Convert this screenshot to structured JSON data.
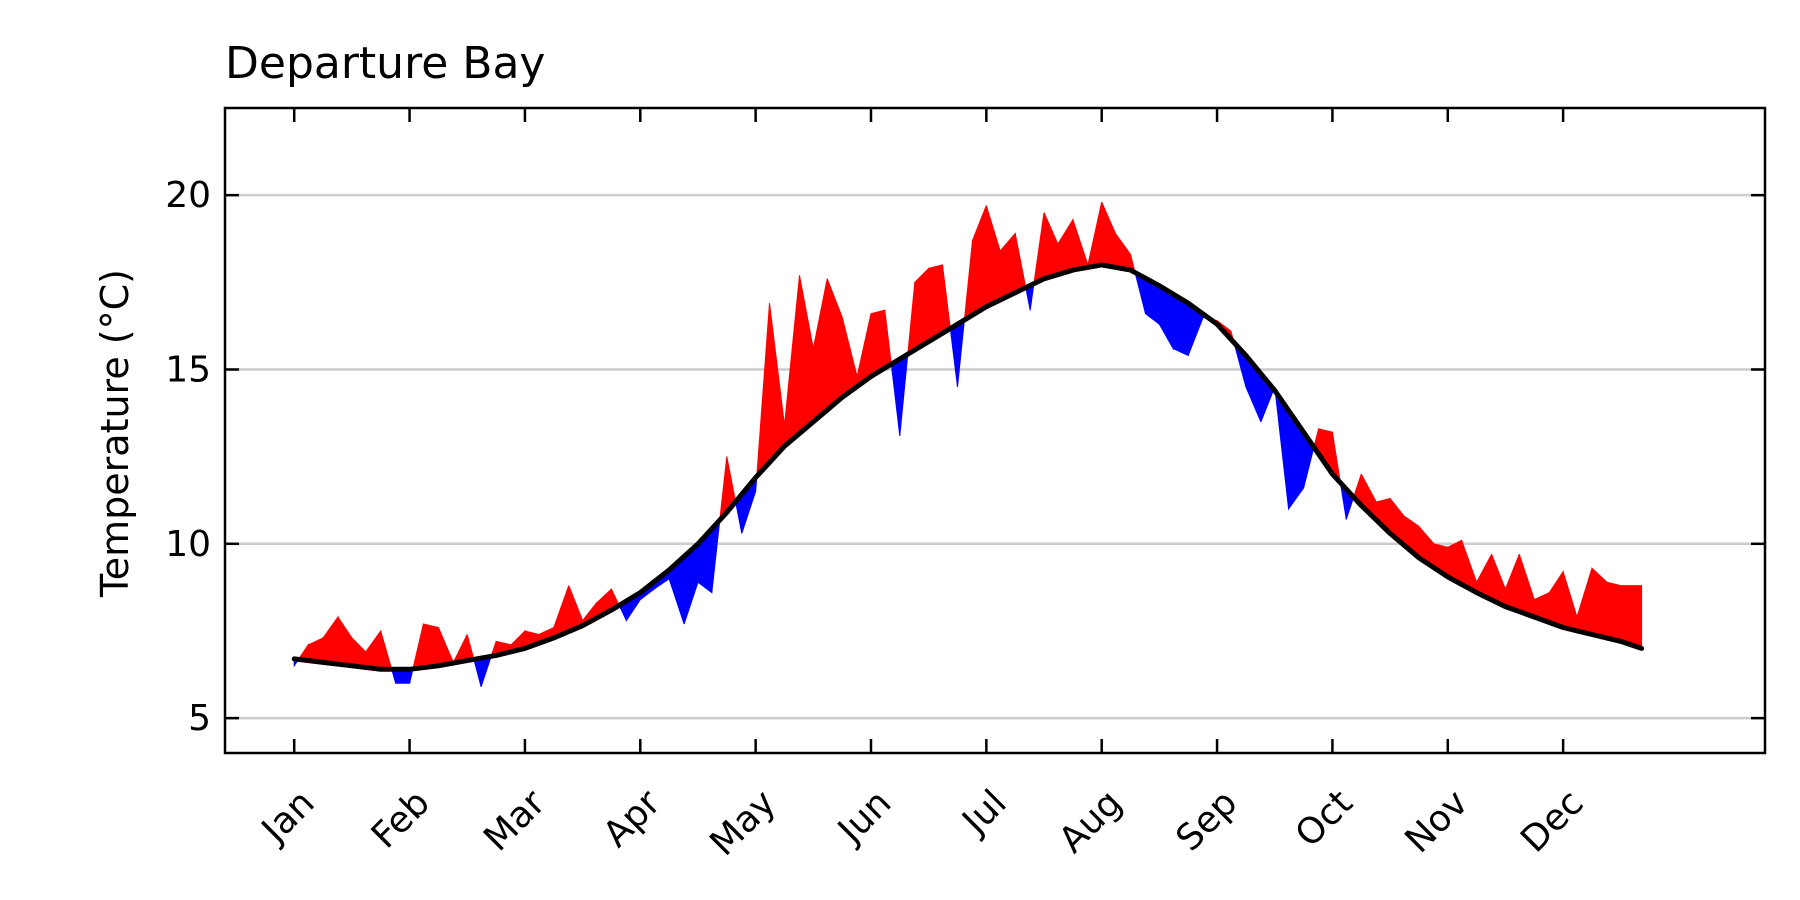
{
  "chart_data": {
    "type": "area",
    "title": "Departure Bay",
    "xlabel": "",
    "ylabel": "Temperature (°C)",
    "ylim": [
      4,
      22.5
    ],
    "yticks": [
      5,
      10,
      15,
      20
    ],
    "xlim": [
      -0.6,
      12.75
    ],
    "grid": "horizontal",
    "legend": "none",
    "x_tick_labels": [
      "Jan",
      "Feb",
      "Mar",
      "Apr",
      "May",
      "Jun",
      "Jul",
      "Aug",
      "Sep",
      "Oct",
      "Nov",
      "Dec"
    ],
    "x_tick_positions": [
      0,
      1,
      2,
      3,
      4,
      5,
      6,
      7,
      8,
      9,
      10,
      11
    ],
    "colors": {
      "above": "#ff0000",
      "below": "#0000ff",
      "climatology": "#000000",
      "grid": "#cccccc"
    },
    "series": [
      {
        "role": "climatology",
        "x": [
          0.0,
          0.25,
          0.5,
          0.75,
          1.0,
          1.25,
          1.5,
          1.75,
          2.0,
          2.25,
          2.5,
          2.75,
          3.0,
          3.25,
          3.5,
          3.75,
          4.0,
          4.25,
          4.5,
          4.75,
          5.0,
          5.25,
          5.5,
          5.75,
          6.0,
          6.25,
          6.5,
          6.75,
          7.0,
          7.25,
          7.5,
          7.75,
          8.0,
          8.25,
          8.5,
          8.75,
          9.0,
          9.25,
          9.5,
          9.75,
          10.0,
          10.25,
          10.5,
          10.75,
          11.0,
          11.25,
          11.5,
          11.68
        ],
        "values": [
          6.7,
          6.6,
          6.5,
          6.4,
          6.4,
          6.5,
          6.65,
          6.8,
          7.0,
          7.3,
          7.65,
          8.1,
          8.6,
          9.25,
          10.0,
          10.9,
          11.9,
          12.8,
          13.5,
          14.2,
          14.8,
          15.3,
          15.8,
          16.3,
          16.8,
          17.2,
          17.6,
          17.85,
          18.0,
          17.85,
          17.4,
          16.9,
          16.3,
          15.4,
          14.4,
          13.2,
          12.0,
          11.1,
          10.3,
          9.6,
          9.05,
          8.6,
          8.2,
          7.9,
          7.6,
          7.4,
          7.2,
          7.0
        ]
      },
      {
        "role": "observed",
        "x": [
          0.0,
          0.12,
          0.25,
          0.38,
          0.5,
          0.62,
          0.75,
          0.88,
          1.0,
          1.12,
          1.25,
          1.38,
          1.5,
          1.62,
          1.75,
          1.88,
          2.0,
          2.12,
          2.25,
          2.38,
          2.5,
          2.62,
          2.75,
          2.88,
          3.0,
          3.12,
          3.25,
          3.38,
          3.5,
          3.62,
          3.75,
          3.88,
          4.0,
          4.12,
          4.25,
          4.38,
          4.5,
          4.62,
          4.75,
          4.88,
          5.0,
          5.12,
          5.25,
          5.38,
          5.5,
          5.62,
          5.75,
          5.88,
          6.0,
          6.12,
          6.25,
          6.38,
          6.5,
          6.62,
          6.75,
          6.88,
          7.0,
          7.12,
          7.25,
          7.38,
          7.5,
          7.62,
          7.75,
          7.88,
          8.0,
          8.12,
          8.25,
          8.38,
          8.5,
          8.62,
          8.75,
          8.88,
          9.0,
          9.12,
          9.25,
          9.38,
          9.5,
          9.62,
          9.75,
          9.88,
          10.0,
          10.12,
          10.25,
          10.38,
          10.5,
          10.62,
          10.75,
          10.88,
          11.0,
          11.12,
          11.25,
          11.38,
          11.5,
          11.68
        ],
        "values": [
          6.5,
          7.1,
          7.3,
          7.9,
          7.3,
          6.9,
          7.5,
          6.0,
          6.0,
          7.7,
          7.6,
          6.6,
          7.4,
          5.9,
          7.2,
          7.1,
          7.5,
          7.4,
          7.6,
          8.8,
          7.8,
          8.3,
          8.7,
          7.8,
          8.4,
          8.7,
          9.0,
          7.7,
          8.9,
          8.6,
          12.5,
          10.3,
          11.5,
          16.9,
          13.4,
          17.7,
          15.6,
          17.6,
          16.5,
          14.8,
          16.6,
          16.7,
          13.1,
          17.5,
          17.9,
          18.0,
          14.5,
          18.7,
          19.7,
          18.4,
          18.9,
          16.7,
          19.5,
          18.6,
          19.3,
          18.0,
          19.8,
          18.9,
          18.3,
          16.6,
          16.3,
          15.6,
          15.4,
          16.5,
          16.4,
          16.1,
          14.5,
          13.5,
          14.5,
          11.0,
          11.6,
          13.3,
          13.2,
          10.7,
          12.0,
          11.2,
          11.3,
          10.8,
          10.5,
          10.0,
          9.9,
          10.1,
          8.9,
          9.7,
          8.7,
          9.7,
          8.4,
          8.6,
          9.2,
          7.9,
          9.3,
          8.9,
          8.8,
          8.8
        ]
      }
    ]
  }
}
